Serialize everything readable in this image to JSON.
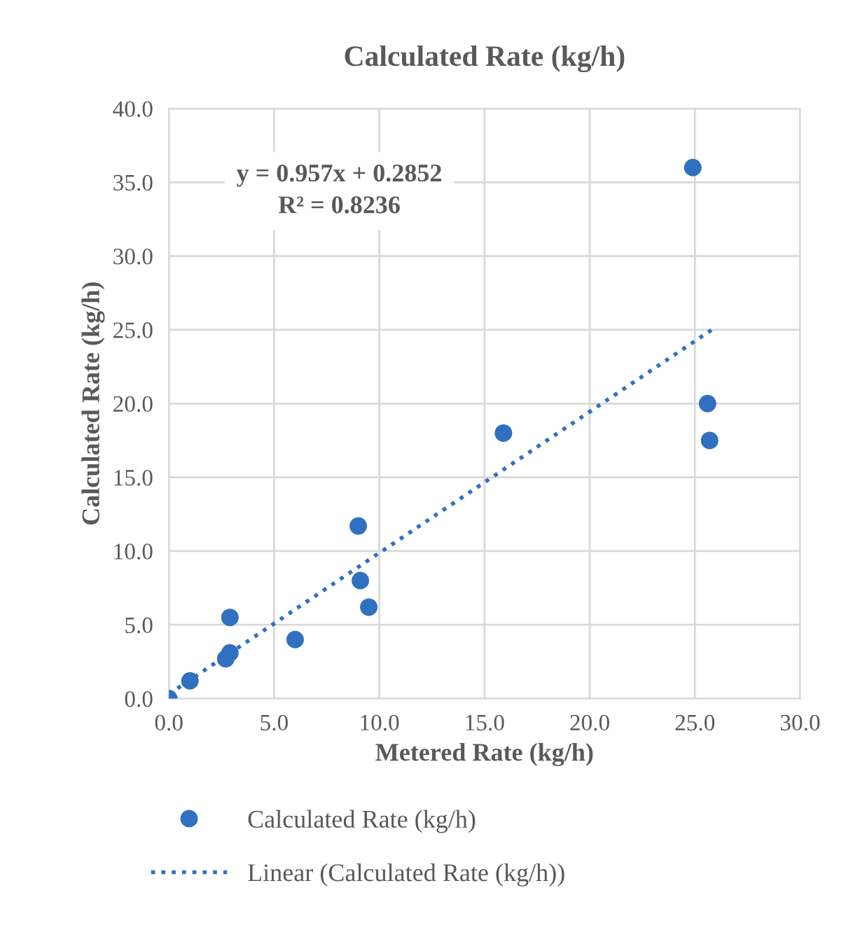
{
  "chart_data": {
    "type": "scatter",
    "title": "Calculated Rate (kg/h)",
    "xlabel": "Metered Rate (kg/h)",
    "ylabel": "Calculated Rate (kg/h)",
    "xlim": [
      0,
      30
    ],
    "ylim": [
      0,
      40
    ],
    "xticks": [
      {
        "value": 0,
        "label": "0.0"
      },
      {
        "value": 5,
        "label": "5.0"
      },
      {
        "value": 10,
        "label": "10.0"
      },
      {
        "value": 15,
        "label": "15.0"
      },
      {
        "value": 20,
        "label": "20.0"
      },
      {
        "value": 25,
        "label": "25.0"
      },
      {
        "value": 30,
        "label": "30.0"
      }
    ],
    "yticks": [
      {
        "value": 0,
        "label": "0.0"
      },
      {
        "value": 5,
        "label": "5.0"
      },
      {
        "value": 10,
        "label": "10.0"
      },
      {
        "value": 15,
        "label": "15.0"
      },
      {
        "value": 20,
        "label": "20.0"
      },
      {
        "value": 25,
        "label": "25.0"
      },
      {
        "value": 30,
        "label": "30.0"
      },
      {
        "value": 35,
        "label": "35.0"
      },
      {
        "value": 40,
        "label": "40.0"
      }
    ],
    "grid": true,
    "legend": "bottom",
    "marker": "circle",
    "annotations": [
      "y = 0.957x + 0.2852\nR² = 0.8236"
    ],
    "series": [
      {
        "name": "Calculated Rate (kg/h)",
        "color": "#3070c0",
        "x": [
          0,
          1.0,
          2.7,
          2.9,
          2.9,
          6.0,
          9.0,
          9.1,
          9.5,
          15.9,
          24.9,
          25.6,
          25.7
        ],
        "values": [
          0,
          1.2,
          2.7,
          3.1,
          5.5,
          4.0,
          11.7,
          8.0,
          6.2,
          18.0,
          36.0,
          20.0,
          17.5
        ]
      },
      {
        "name": "Linear (Calculated Rate (kg/h))",
        "type": "line",
        "line_style": "dotted",
        "marker": "none",
        "color": "#3070c0",
        "x": [
          0,
          25.8
        ],
        "values": [
          0.3,
          25.0
        ]
      }
    ]
  }
}
